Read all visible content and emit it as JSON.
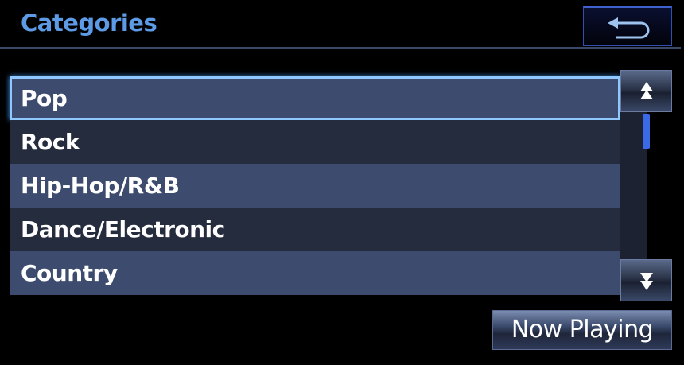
{
  "header": {
    "title": "Categories",
    "back_icon": "return-arrow-icon"
  },
  "list": {
    "items": [
      {
        "label": "Pop",
        "selected": true
      },
      {
        "label": "Rock"
      },
      {
        "label": "Hip-Hop/R&B"
      },
      {
        "label": "Dance/Electronic"
      },
      {
        "label": "Country"
      }
    ]
  },
  "scroll": {
    "up_icon": "double-up-arrow-icon",
    "down_icon": "double-down-arrow-icon",
    "up_glyph": "⯭",
    "down_glyph": "⯯"
  },
  "footer": {
    "now_playing_label": "Now Playing"
  },
  "colors": {
    "accent": "#5d9be6",
    "row_light": "#3c4b6e",
    "row_dark": "#252c3e",
    "selection": "#8ec8ff"
  }
}
